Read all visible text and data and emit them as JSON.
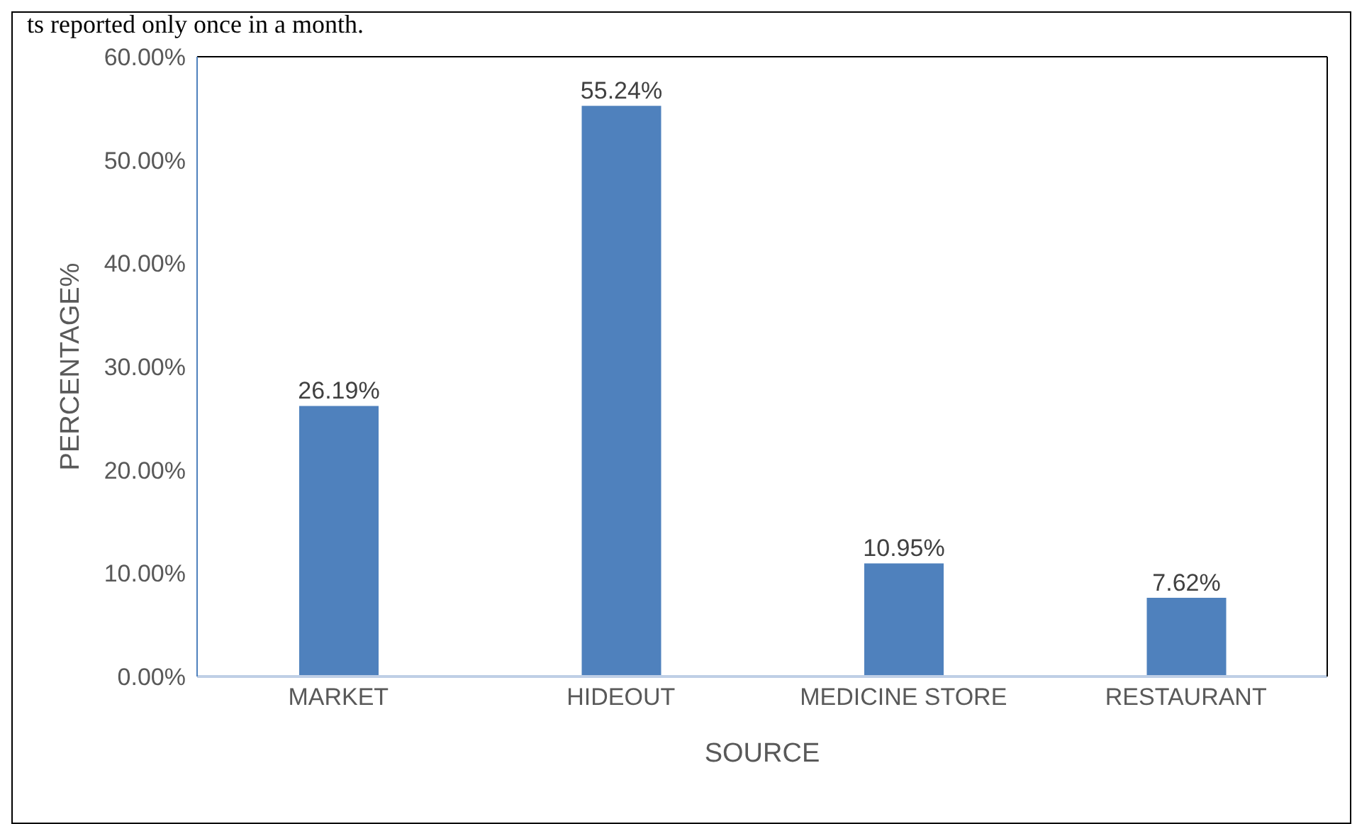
{
  "chart_data": {
    "type": "bar",
    "xlabel": "SOURCE",
    "ylabel": "PERCENTAGE%",
    "annotations": [
      "ts reported only once in a month."
    ],
    "categories": [
      "MARKET",
      "HIDEOUT",
      "MEDICINE STORE",
      "RESTAURANT"
    ],
    "values": [
      26.19,
      55.24,
      10.95,
      7.62
    ],
    "value_labels": [
      "26.19%",
      "55.24%",
      "10.95%",
      "7.62%"
    ],
    "color": "#4f81bd",
    "ylim": [
      0,
      60
    ],
    "yticks": [
      {
        "value": 0,
        "label": "0.00%"
      },
      {
        "value": 10,
        "label": "10.00%"
      },
      {
        "value": 20,
        "label": "20.00%"
      },
      {
        "value": 30,
        "label": "30.00%"
      },
      {
        "value": 40,
        "label": "40.00%"
      },
      {
        "value": 50,
        "label": "50.00%"
      },
      {
        "value": 60,
        "label": "60.00%"
      }
    ],
    "grid": false,
    "legend": false
  }
}
